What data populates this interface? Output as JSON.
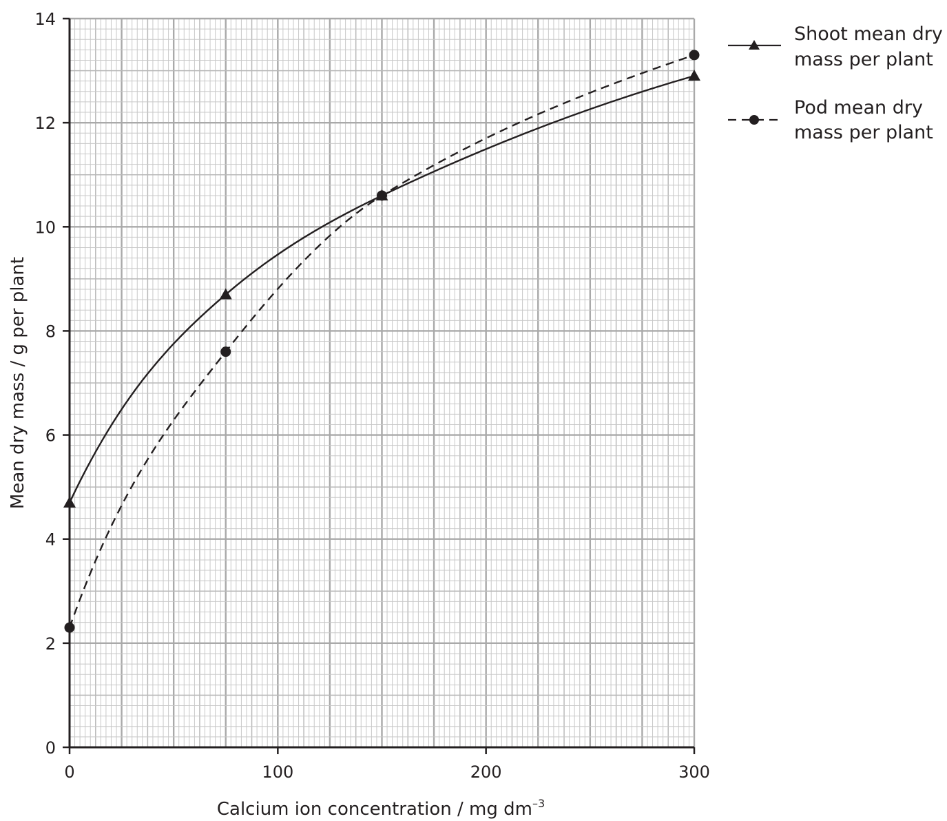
{
  "chart_data": {
    "type": "line",
    "xlabel": "Calcium ion concentration / mg dm",
    "xlabel_superscript": "–3",
    "ylabel": "Mean dry mass / g per plant",
    "xlim": [
      0,
      300
    ],
    "ylim": [
      0,
      14
    ],
    "x_ticks": [
      0,
      100,
      200,
      300
    ],
    "y_ticks": [
      0,
      2,
      4,
      6,
      8,
      10,
      12,
      14
    ],
    "x_tick_labels": [
      "0",
      "100",
      "200",
      "300"
    ],
    "y_tick_labels": [
      "0",
      "2",
      "4",
      "6",
      "8",
      "10",
      "12",
      "14"
    ],
    "grid": true,
    "legend_position": "top-right outside",
    "series": [
      {
        "name_lines": [
          "Shoot mean dry",
          "mass per plant"
        ],
        "marker": "triangle",
        "line_style": "solid",
        "color": "#231f20",
        "x": [
          0,
          75,
          150,
          300
        ],
        "y": [
          4.7,
          8.7,
          10.6,
          12.9
        ]
      },
      {
        "name_lines": [
          "Pod mean dry",
          "mass per plant"
        ],
        "marker": "circle",
        "line_style": "dashed",
        "color": "#231f20",
        "x": [
          0,
          75,
          150,
          300
        ],
        "y": [
          2.3,
          7.6,
          10.6,
          13.3
        ]
      }
    ]
  }
}
